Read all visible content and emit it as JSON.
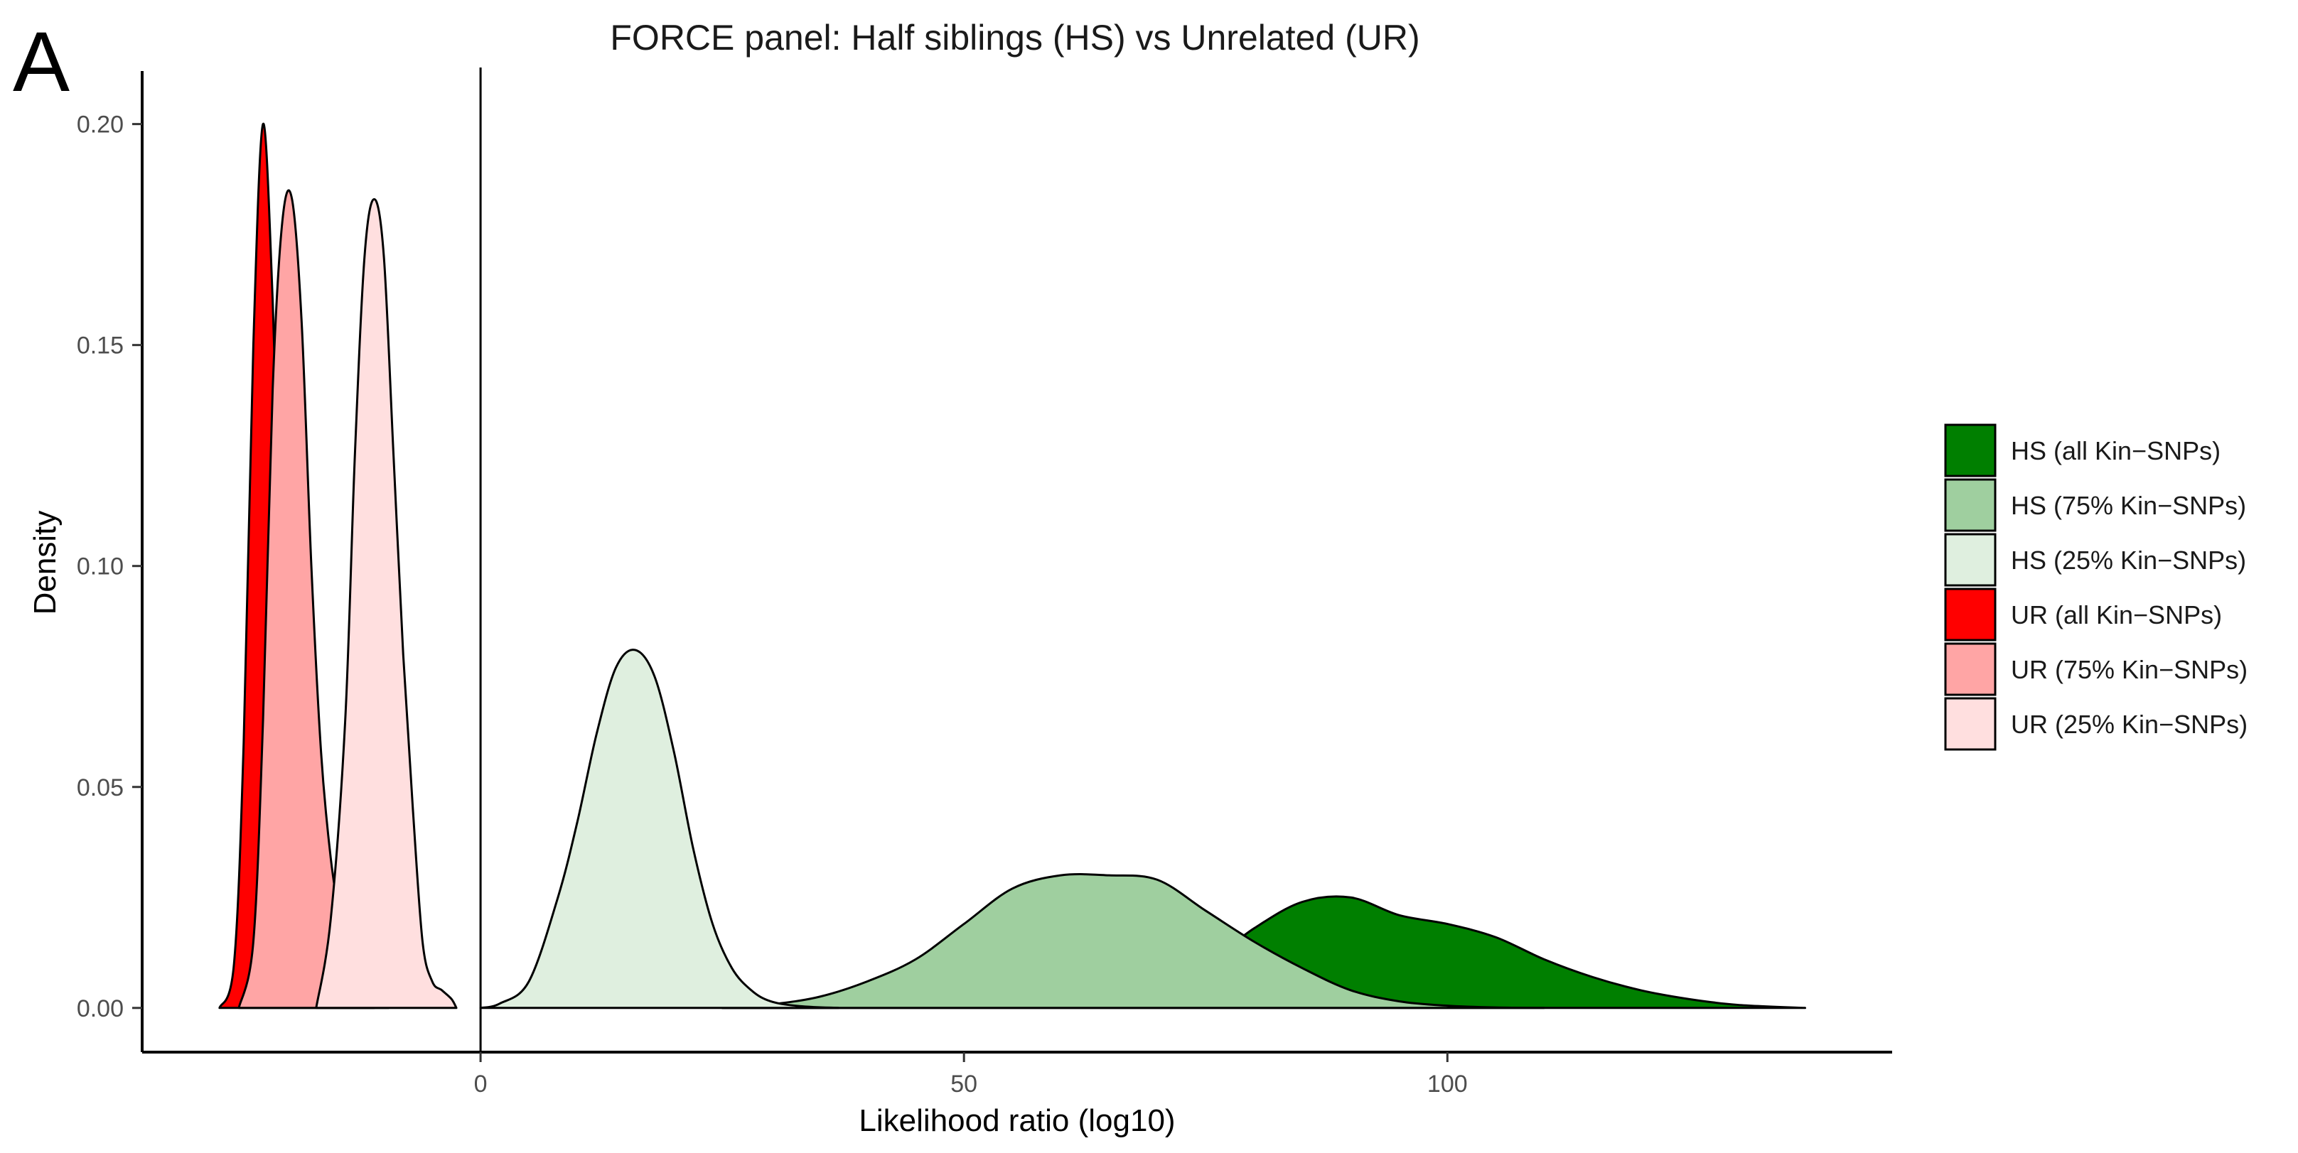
{
  "panel_letter": "A",
  "chart_data": {
    "type": "area",
    "title": "FORCE panel: Half siblings (HS) vs Unrelated (UR)",
    "xlabel": "Likelihood ratio (log10)",
    "ylabel": "Density",
    "xlim": [
      -35,
      146
    ],
    "ylim": [
      -0.01,
      0.212
    ],
    "x_ticks": [
      0,
      50,
      100
    ],
    "y_ticks": [
      0.0,
      0.05,
      0.1,
      0.15,
      0.2
    ],
    "y_tick_labels": [
      "0.00",
      "0.05",
      "0.10",
      "0.15",
      "0.20"
    ],
    "vline_x": 0,
    "grid": false,
    "legend_position": "right",
    "series": [
      {
        "name": "HS (all Kin−SNPs)",
        "color": "#007F00",
        "x": [
          25,
          40,
          50,
          60,
          65,
          70,
          75,
          80,
          85,
          90,
          95,
          100,
          105,
          110,
          115,
          120,
          125,
          130,
          137
        ],
        "y": [
          0.0,
          0.0003,
          0.001,
          0.002,
          0.0035,
          0.006,
          0.01,
          0.018,
          0.024,
          0.025,
          0.021,
          0.019,
          0.016,
          0.011,
          0.007,
          0.004,
          0.002,
          0.0007,
          0.0
        ]
      },
      {
        "name": "HS (75% Kin−SNPs)",
        "color": "#9FCF9F",
        "x": [
          25,
          30,
          35,
          40,
          45,
          50,
          55,
          60,
          65,
          70,
          75,
          80,
          85,
          90,
          95,
          100,
          105,
          110
        ],
        "y": [
          0.0,
          0.0008,
          0.0025,
          0.006,
          0.011,
          0.019,
          0.027,
          0.03,
          0.03,
          0.029,
          0.022,
          0.015,
          0.009,
          0.004,
          0.0015,
          0.0005,
          0.0001,
          0.0
        ]
      },
      {
        "name": "HS (25% Kin−SNPs)",
        "color": "#DFEFDF",
        "x": [
          0,
          2,
          5,
          8,
          10,
          12,
          14,
          16,
          18,
          20,
          22,
          24,
          26,
          28,
          30,
          33,
          37
        ],
        "y": [
          0.0,
          0.001,
          0.006,
          0.025,
          0.042,
          0.062,
          0.077,
          0.081,
          0.075,
          0.058,
          0.036,
          0.019,
          0.009,
          0.004,
          0.0015,
          0.0004,
          0.0
        ]
      },
      {
        "name": "UR (all Kin−SNPs)",
        "color": "#FF0000",
        "x": [
          -27,
          -25.5,
          -24.5,
          -23.5,
          -22.5,
          -21.5,
          -20.5,
          -19.5,
          -18.5,
          -17.5,
          -16.5,
          -15.5,
          -14.5,
          -13,
          -11
        ],
        "y": [
          0.0,
          0.01,
          0.06,
          0.15,
          0.2,
          0.16,
          0.09,
          0.05,
          0.028,
          0.017,
          0.013,
          0.007,
          0.004,
          0.0015,
          0.0
        ]
      },
      {
        "name": "UR (75% Kin−SNPs)",
        "color": "#FFA5A5",
        "x": [
          -25,
          -23.5,
          -22.5,
          -21.5,
          -20.5,
          -19.5,
          -18.5,
          -17.5,
          -16.5,
          -15.5,
          -14.5,
          -13.5,
          -12.5,
          -11.5,
          -10.5,
          -9.5
        ],
        "y": [
          0.0,
          0.015,
          0.065,
          0.14,
          0.178,
          0.183,
          0.155,
          0.1,
          0.058,
          0.034,
          0.02,
          0.011,
          0.006,
          0.003,
          0.001,
          0.0
        ]
      },
      {
        "name": "UR (25% Kin−SNPs)",
        "color": "#FFDFDF",
        "x": [
          -17,
          -15.5,
          -14,
          -13,
          -12,
          -11,
          -10,
          -9,
          -8,
          -7,
          -6,
          -5,
          -4,
          -3,
          -2.5
        ],
        "y": [
          0.0,
          0.02,
          0.065,
          0.125,
          0.17,
          0.183,
          0.17,
          0.125,
          0.08,
          0.045,
          0.015,
          0.006,
          0.004,
          0.002,
          0.0
        ]
      }
    ]
  }
}
